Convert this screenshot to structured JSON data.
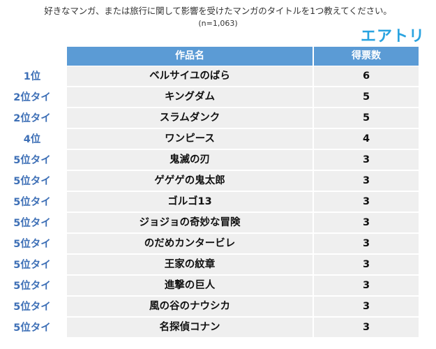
{
  "header": {
    "question": "好きなマンガ、または旅行に関して影響を受けたマンガのタイトルを1つ教えてください。",
    "sample_size": "(n=1,063)",
    "logo": "エアトリ"
  },
  "table": {
    "columns": [
      "作品名",
      "得票数"
    ],
    "rows": [
      {
        "rank": "1位",
        "title": "ベルサイユのばら",
        "votes": "6"
      },
      {
        "rank": "2位タイ",
        "title": "キングダム",
        "votes": "5"
      },
      {
        "rank": "2位タイ",
        "title": "スラムダンク",
        "votes": "5"
      },
      {
        "rank": "4位",
        "title": "ワンピース",
        "votes": "4"
      },
      {
        "rank": "5位タイ",
        "title": "鬼滅の刃",
        "votes": "3"
      },
      {
        "rank": "5位タイ",
        "title": "ゲゲゲの鬼太郎",
        "votes": "3"
      },
      {
        "rank": "5位タイ",
        "title": "ゴルゴ13",
        "votes": "3"
      },
      {
        "rank": "5位タイ",
        "title": "ジョジョの奇妙な冒険",
        "votes": "3"
      },
      {
        "rank": "5位タイ",
        "title": "のだめカンタービレ",
        "votes": "3"
      },
      {
        "rank": "5位タイ",
        "title": "王家の紋章",
        "votes": "3"
      },
      {
        "rank": "5位タイ",
        "title": "進撃の巨人",
        "votes": "3"
      },
      {
        "rank": "5位タイ",
        "title": "風の谷のナウシカ",
        "votes": "3"
      },
      {
        "rank": "5位タイ",
        "title": "名探偵コナン",
        "votes": "3"
      }
    ]
  },
  "colors": {
    "header_bg": "#5b9bd5",
    "row_bg": "#efefef",
    "rank_text": "#3d6fb6",
    "logo": "#29a3e0"
  }
}
